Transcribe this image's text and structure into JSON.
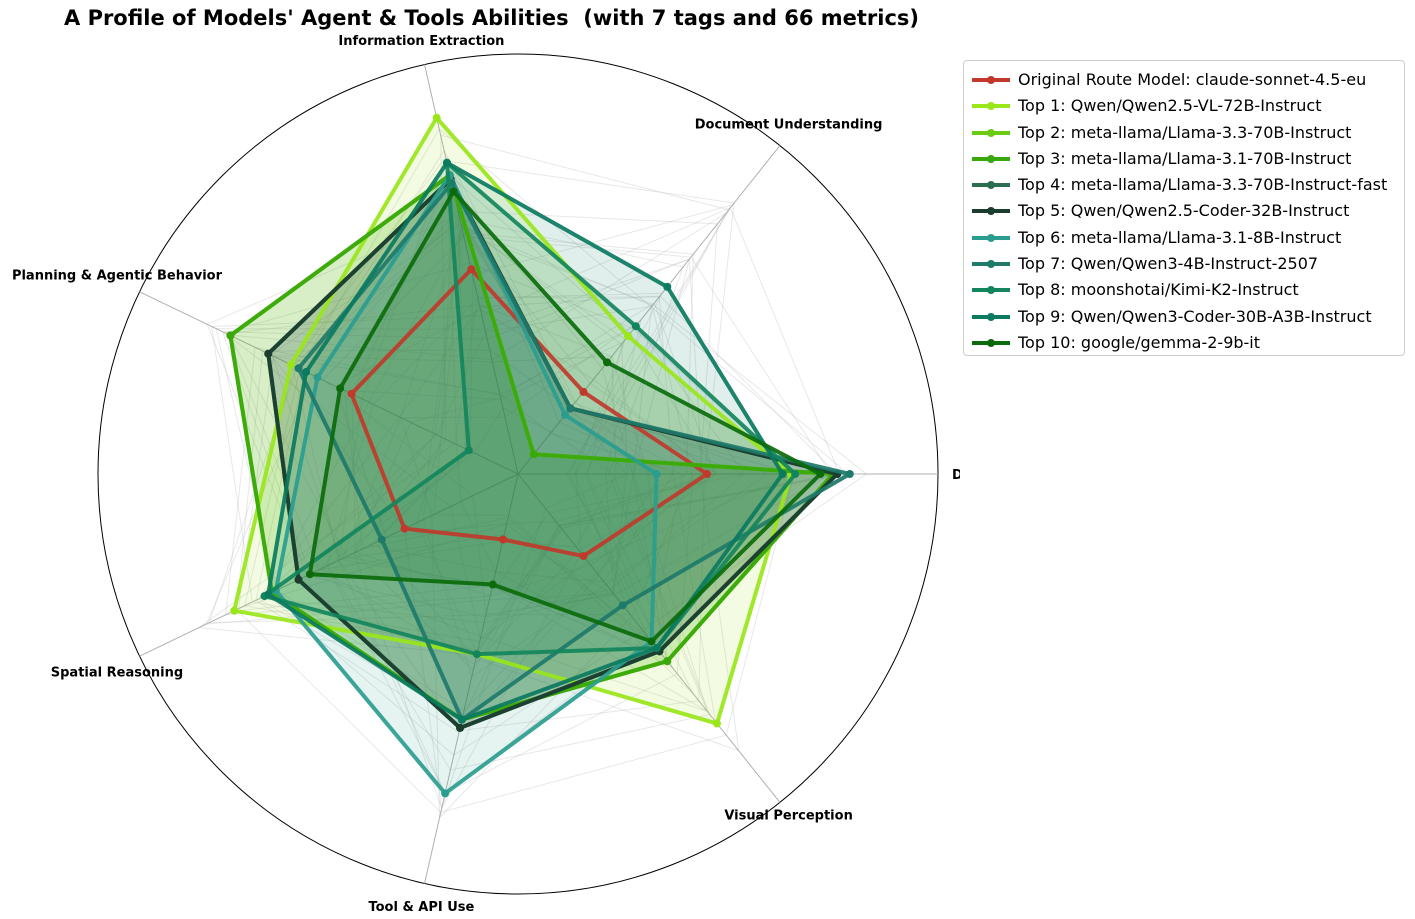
{
  "chart_data": {
    "type": "radar",
    "title": "A Profile of Models' Agent & Tools Abilities  (with 7 tags and 66 metrics)",
    "axes": [
      "Data & Chart Analysis",
      "Document Understanding",
      "Information Extraction",
      "Planning & Agentic Behavior",
      "Spatial Reasoning",
      "Tool & API Use",
      "Visual Perception"
    ],
    "rlim": [
      0,
      1
    ],
    "legend_position": "upper-right-outside",
    "series": [
      {
        "name": "Original Route Model: claude-sonnet-4.5-eu",
        "color": "#c0392b",
        "fill": false,
        "values": [
          0.45,
          0.25,
          0.5,
          0.44,
          0.3,
          0.16,
          0.25
        ]
      },
      {
        "name": "Top 1: Qwen/Qwen2.5-VL-72B-Instruct",
        "color": "#99e619",
        "fill": true,
        "values": [
          0.65,
          0.42,
          0.87,
          0.6,
          0.75,
          0.44,
          0.76
        ]
      },
      {
        "name": "Top 2: meta-llama/Llama-3.3-70B-Instruct",
        "color": "#6acb10",
        "fill": true,
        "values": [
          0.75,
          0.06,
          0.73,
          0.76,
          0.65,
          0.6,
          0.57
        ]
      },
      {
        "name": "Top 3: meta-llama/Llama-3.1-70B-Instruct",
        "color": "#38a80a",
        "fill": true,
        "values": [
          0.75,
          0.06,
          0.73,
          0.76,
          0.65,
          0.6,
          0.57
        ]
      },
      {
        "name": "Top 4: meta-llama/Llama-3.3-70B-Instruct-fast",
        "color": "#2c6e50",
        "fill": true,
        "values": [
          0.76,
          0.2,
          0.72,
          0.66,
          0.58,
          0.62,
          0.54
        ]
      },
      {
        "name": "Top 5: Qwen/Qwen2.5-Coder-32B-Instruct",
        "color": "#1a3d2e",
        "fill": true,
        "values": [
          0.76,
          0.2,
          0.72,
          0.66,
          0.58,
          0.62,
          0.54
        ]
      },
      {
        "name": "Top 6: meta-llama/Llama-3.1-8B-Instruct",
        "color": "#2a9d8f",
        "fill": true,
        "values": [
          0.33,
          0.18,
          0.73,
          0.53,
          0.64,
          0.78,
          0.51
        ]
      },
      {
        "name": "Top 7: Qwen/Qwen3-4B-Instruct-2507",
        "color": "#1e7a6a",
        "fill": true,
        "values": [
          0.79,
          0.2,
          0.71,
          0.58,
          0.36,
          0.6,
          0.4
        ]
      },
      {
        "name": "Top 8: moonshotai/Kimi-K2-Instruct",
        "color": "#13855c",
        "fill": true,
        "values": [
          0.66,
          0.45,
          0.76,
          0.13,
          0.67,
          0.44,
          0.53
        ]
      },
      {
        "name": "Top 9: Qwen/Qwen3-Coder-30B-A3B-Instruct",
        "color": "#0a7a60",
        "fill": true,
        "values": [
          0.63,
          0.57,
          0.76,
          0.56,
          0.66,
          0.6,
          0.53
        ]
      },
      {
        "name": "Top 10: google/gemma-2-9b-it",
        "color": "#0b6b0b",
        "fill": true,
        "values": [
          0.72,
          0.34,
          0.69,
          0.47,
          0.55,
          0.27,
          0.51
        ]
      }
    ]
  }
}
